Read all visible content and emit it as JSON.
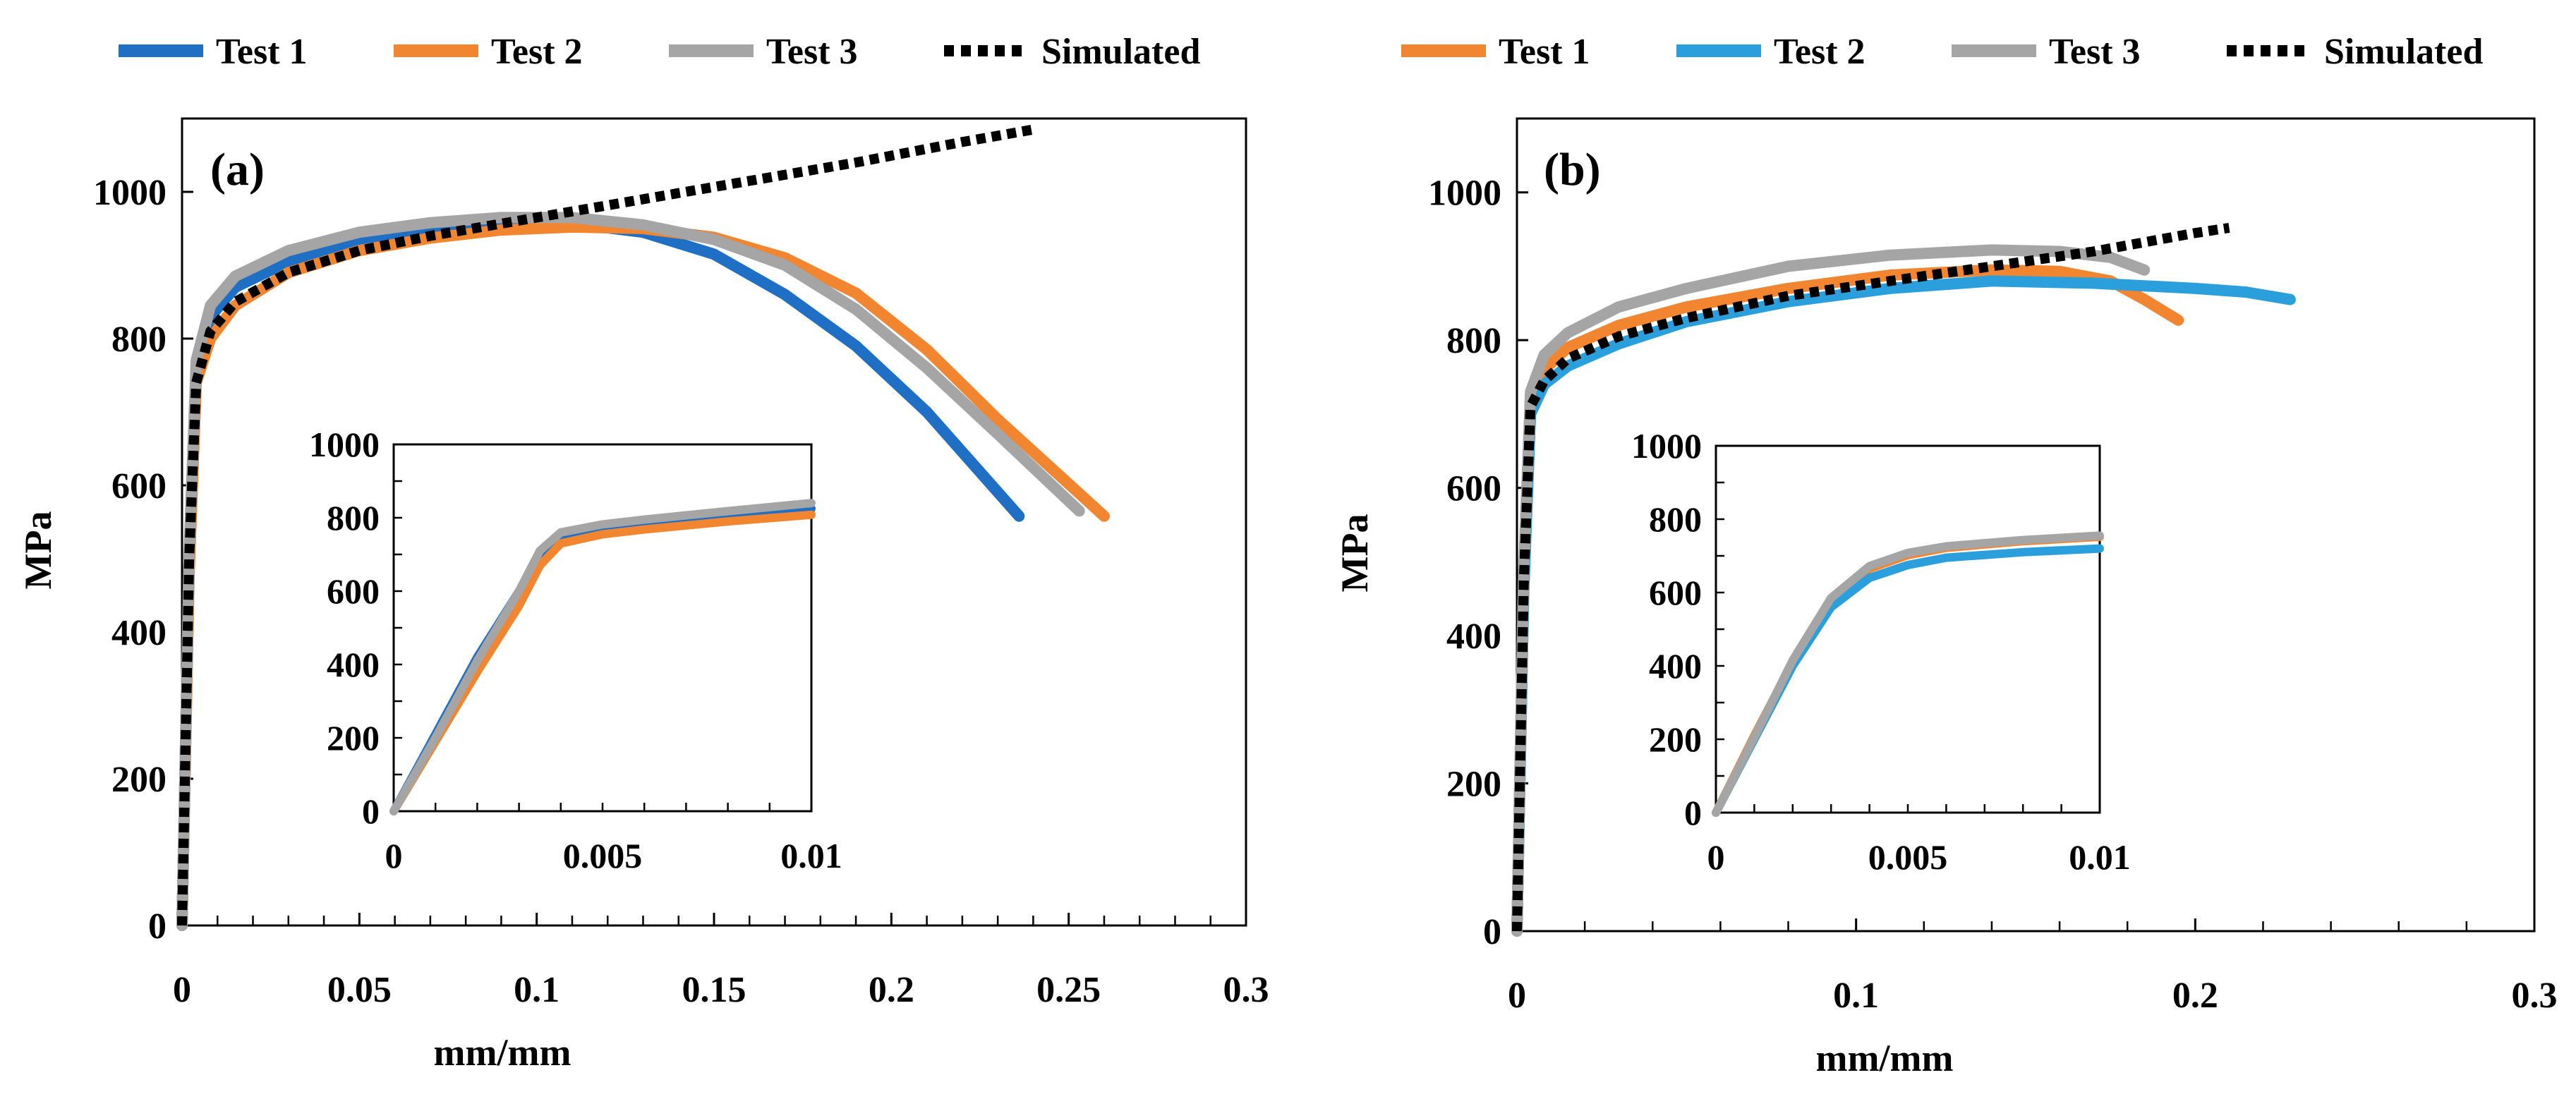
{
  "chart_data": [
    {
      "type": "line",
      "panel_label": "(a)",
      "xlabel": "mm/mm",
      "ylabel": "MPa",
      "xlim": [
        0,
        0.3
      ],
      "ylim": [
        0,
        1100
      ],
      "xticks": [
        0,
        0.05,
        0.1,
        0.15,
        0.2,
        0.25,
        0.3
      ],
      "xtick_labels": [
        "0",
        "0.05",
        "0.1",
        "0.15",
        "0.2",
        "0.25",
        "0.3"
      ],
      "yticks": [
        0,
        200,
        400,
        600,
        800,
        1000
      ],
      "ytick_labels": [
        "0",
        "200",
        "400",
        "600",
        "800",
        "1000"
      ],
      "legend_position": "top",
      "legend": [
        "Test 1",
        "Test 2",
        "Test 3",
        "Simulated"
      ],
      "series": [
        {
          "name": "Test 1",
          "color": "#1F6FC5",
          "style": "solid",
          "x": [
            0,
            0.002,
            0.004,
            0.008,
            0.015,
            0.03,
            0.05,
            0.07,
            0.09,
            0.11,
            0.13,
            0.15,
            0.17,
            0.19,
            0.21,
            0.236
          ],
          "y": [
            0,
            500,
            760,
            830,
            870,
            905,
            930,
            945,
            955,
            957,
            945,
            915,
            860,
            790,
            700,
            558
          ]
        },
        {
          "name": "Test 2",
          "color": "#F28530",
          "style": "solid",
          "x": [
            0,
            0.002,
            0.004,
            0.008,
            0.015,
            0.03,
            0.05,
            0.07,
            0.09,
            0.11,
            0.13,
            0.15,
            0.17,
            0.19,
            0.21,
            0.23,
            0.26
          ],
          "y": [
            0,
            480,
            740,
            800,
            845,
            890,
            920,
            937,
            948,
            952,
            950,
            938,
            910,
            862,
            785,
            690,
            558
          ]
        },
        {
          "name": "Test 3",
          "color": "#A5A5A5",
          "style": "solid",
          "x": [
            0,
            0.002,
            0.004,
            0.008,
            0.015,
            0.03,
            0.05,
            0.07,
            0.09,
            0.11,
            0.13,
            0.15,
            0.17,
            0.19,
            0.21,
            0.23,
            0.253
          ],
          "y": [
            0,
            510,
            770,
            845,
            885,
            920,
            945,
            958,
            965,
            965,
            955,
            935,
            900,
            840,
            760,
            670,
            565
          ]
        },
        {
          "name": "Simulated",
          "color": "#000000",
          "style": "dotted",
          "x": [
            0,
            0.002,
            0.004,
            0.008,
            0.015,
            0.03,
            0.05,
            0.07,
            0.1,
            0.13,
            0.16,
            0.19,
            0.22,
            0.24
          ],
          "y": [
            0,
            500,
            740,
            810,
            850,
            890,
            920,
            940,
            965,
            990,
            1015,
            1040,
            1068,
            1085
          ]
        }
      ],
      "inset": {
        "xlim": [
          0,
          0.01
        ],
        "ylim": [
          0,
          1000
        ],
        "xticks": [
          0,
          0.005,
          0.01
        ],
        "xtick_labels": [
          "0",
          "0.005",
          "0.01"
        ],
        "yticks": [
          0,
          200,
          400,
          600,
          800,
          1000
        ],
        "ytick_labels": [
          "0",
          "200",
          "400",
          "600",
          "800",
          "1000"
        ],
        "series": [
          {
            "name": "Test 1",
            "color": "#1F6FC5",
            "x": [
              0,
              0.001,
              0.002,
              0.003,
              0.0035,
              0.004,
              0.005,
              0.006,
              0.008,
              0.01
            ],
            "y": [
              0,
              210,
              420,
              600,
              700,
              750,
              775,
              790,
              810,
              825
            ]
          },
          {
            "name": "Test 2",
            "color": "#F28530",
            "x": [
              0,
              0.001,
              0.002,
              0.003,
              0.0035,
              0.004,
              0.005,
              0.006,
              0.008,
              0.01
            ],
            "y": [
              0,
              190,
              380,
              560,
              670,
              730,
              755,
              768,
              790,
              808
            ]
          },
          {
            "name": "Test 3",
            "color": "#A5A5A5",
            "x": [
              0,
              0.001,
              0.002,
              0.003,
              0.0035,
              0.004,
              0.005,
              0.006,
              0.008,
              0.01
            ],
            "y": [
              0,
              200,
              410,
              600,
              710,
              760,
              782,
              795,
              818,
              840
            ]
          }
        ]
      }
    },
    {
      "type": "line",
      "panel_label": "(b)",
      "xlabel": "mm/mm",
      "ylabel": "MPa",
      "xlim": [
        0,
        0.3
      ],
      "ylim": [
        0,
        1100
      ],
      "xticks": [
        0,
        0.1,
        0.2,
        0.3
      ],
      "xtick_labels": [
        "0",
        "0.1",
        "0.2",
        "0.3"
      ],
      "minor_xtick_step": 0.02,
      "yticks": [
        0,
        200,
        400,
        600,
        800,
        1000
      ],
      "ytick_labels": [
        "0",
        "200",
        "400",
        "600",
        "800",
        "1000"
      ],
      "legend_position": "top",
      "legend": [
        "Test 1",
        "Test 2",
        "Test 3",
        "Simulated"
      ],
      "series": [
        {
          "name": "Test 1",
          "color": "#F28530",
          "style": "solid",
          "x": [
            0,
            0.002,
            0.004,
            0.008,
            0.015,
            0.03,
            0.05,
            0.08,
            0.11,
            0.14,
            0.16,
            0.175,
            0.185,
            0.195
          ],
          "y": [
            0,
            480,
            720,
            760,
            790,
            820,
            845,
            870,
            888,
            895,
            893,
            880,
            855,
            827
          ]
        },
        {
          "name": "Test 2",
          "color": "#2A9FDC",
          "style": "solid",
          "x": [
            0,
            0.002,
            0.004,
            0.008,
            0.015,
            0.03,
            0.05,
            0.08,
            0.11,
            0.14,
            0.17,
            0.2,
            0.215,
            0.228
          ],
          "y": [
            0,
            460,
            700,
            740,
            765,
            795,
            825,
            852,
            870,
            880,
            877,
            870,
            865,
            855
          ]
        },
        {
          "name": "Test 3",
          "color": "#A5A5A5",
          "style": "solid",
          "x": [
            0,
            0.002,
            0.004,
            0.008,
            0.015,
            0.03,
            0.05,
            0.08,
            0.11,
            0.14,
            0.16,
            0.175,
            0.185
          ],
          "y": [
            0,
            490,
            730,
            780,
            810,
            845,
            870,
            900,
            915,
            922,
            920,
            912,
            895
          ]
        },
        {
          "name": "Simulated",
          "color": "#000000",
          "style": "dotted",
          "x": [
            0,
            0.002,
            0.004,
            0.008,
            0.015,
            0.03,
            0.05,
            0.08,
            0.11,
            0.14,
            0.17,
            0.2,
            0.21
          ],
          "y": [
            0,
            470,
            710,
            745,
            775,
            805,
            830,
            860,
            880,
            900,
            920,
            945,
            952
          ]
        }
      ],
      "inset": {
        "xlim": [
          0,
          0.01
        ],
        "ylim": [
          0,
          1000
        ],
        "xticks": [
          0,
          0.005,
          0.01
        ],
        "xtick_labels": [
          "0",
          "0.005",
          "0.01"
        ],
        "yticks": [
          0,
          200,
          400,
          600,
          800,
          1000
        ],
        "ytick_labels": [
          "0",
          "200",
          "400",
          "600",
          "800",
          "1000"
        ],
        "series": [
          {
            "name": "Test 1",
            "color": "#F28530",
            "x": [
              0,
              0.001,
              0.002,
              0.003,
              0.004,
              0.005,
              0.006,
              0.008,
              0.01
            ],
            "y": [
              0,
              210,
              410,
              575,
              665,
              702,
              722,
              740,
              752
            ]
          },
          {
            "name": "Test 2",
            "color": "#2A9FDC",
            "x": [
              0,
              0.001,
              0.002,
              0.003,
              0.004,
              0.005,
              0.006,
              0.008,
              0.01
            ],
            "y": [
              0,
              200,
              400,
              560,
              640,
              675,
              695,
              710,
              720
            ]
          },
          {
            "name": "Test 3",
            "color": "#A5A5A5",
            "x": [
              0,
              0.001,
              0.002,
              0.003,
              0.004,
              0.005,
              0.006,
              0.008,
              0.01
            ],
            "y": [
              0,
              205,
              415,
              585,
              672,
              708,
              726,
              743,
              755
            ]
          }
        ]
      }
    }
  ]
}
